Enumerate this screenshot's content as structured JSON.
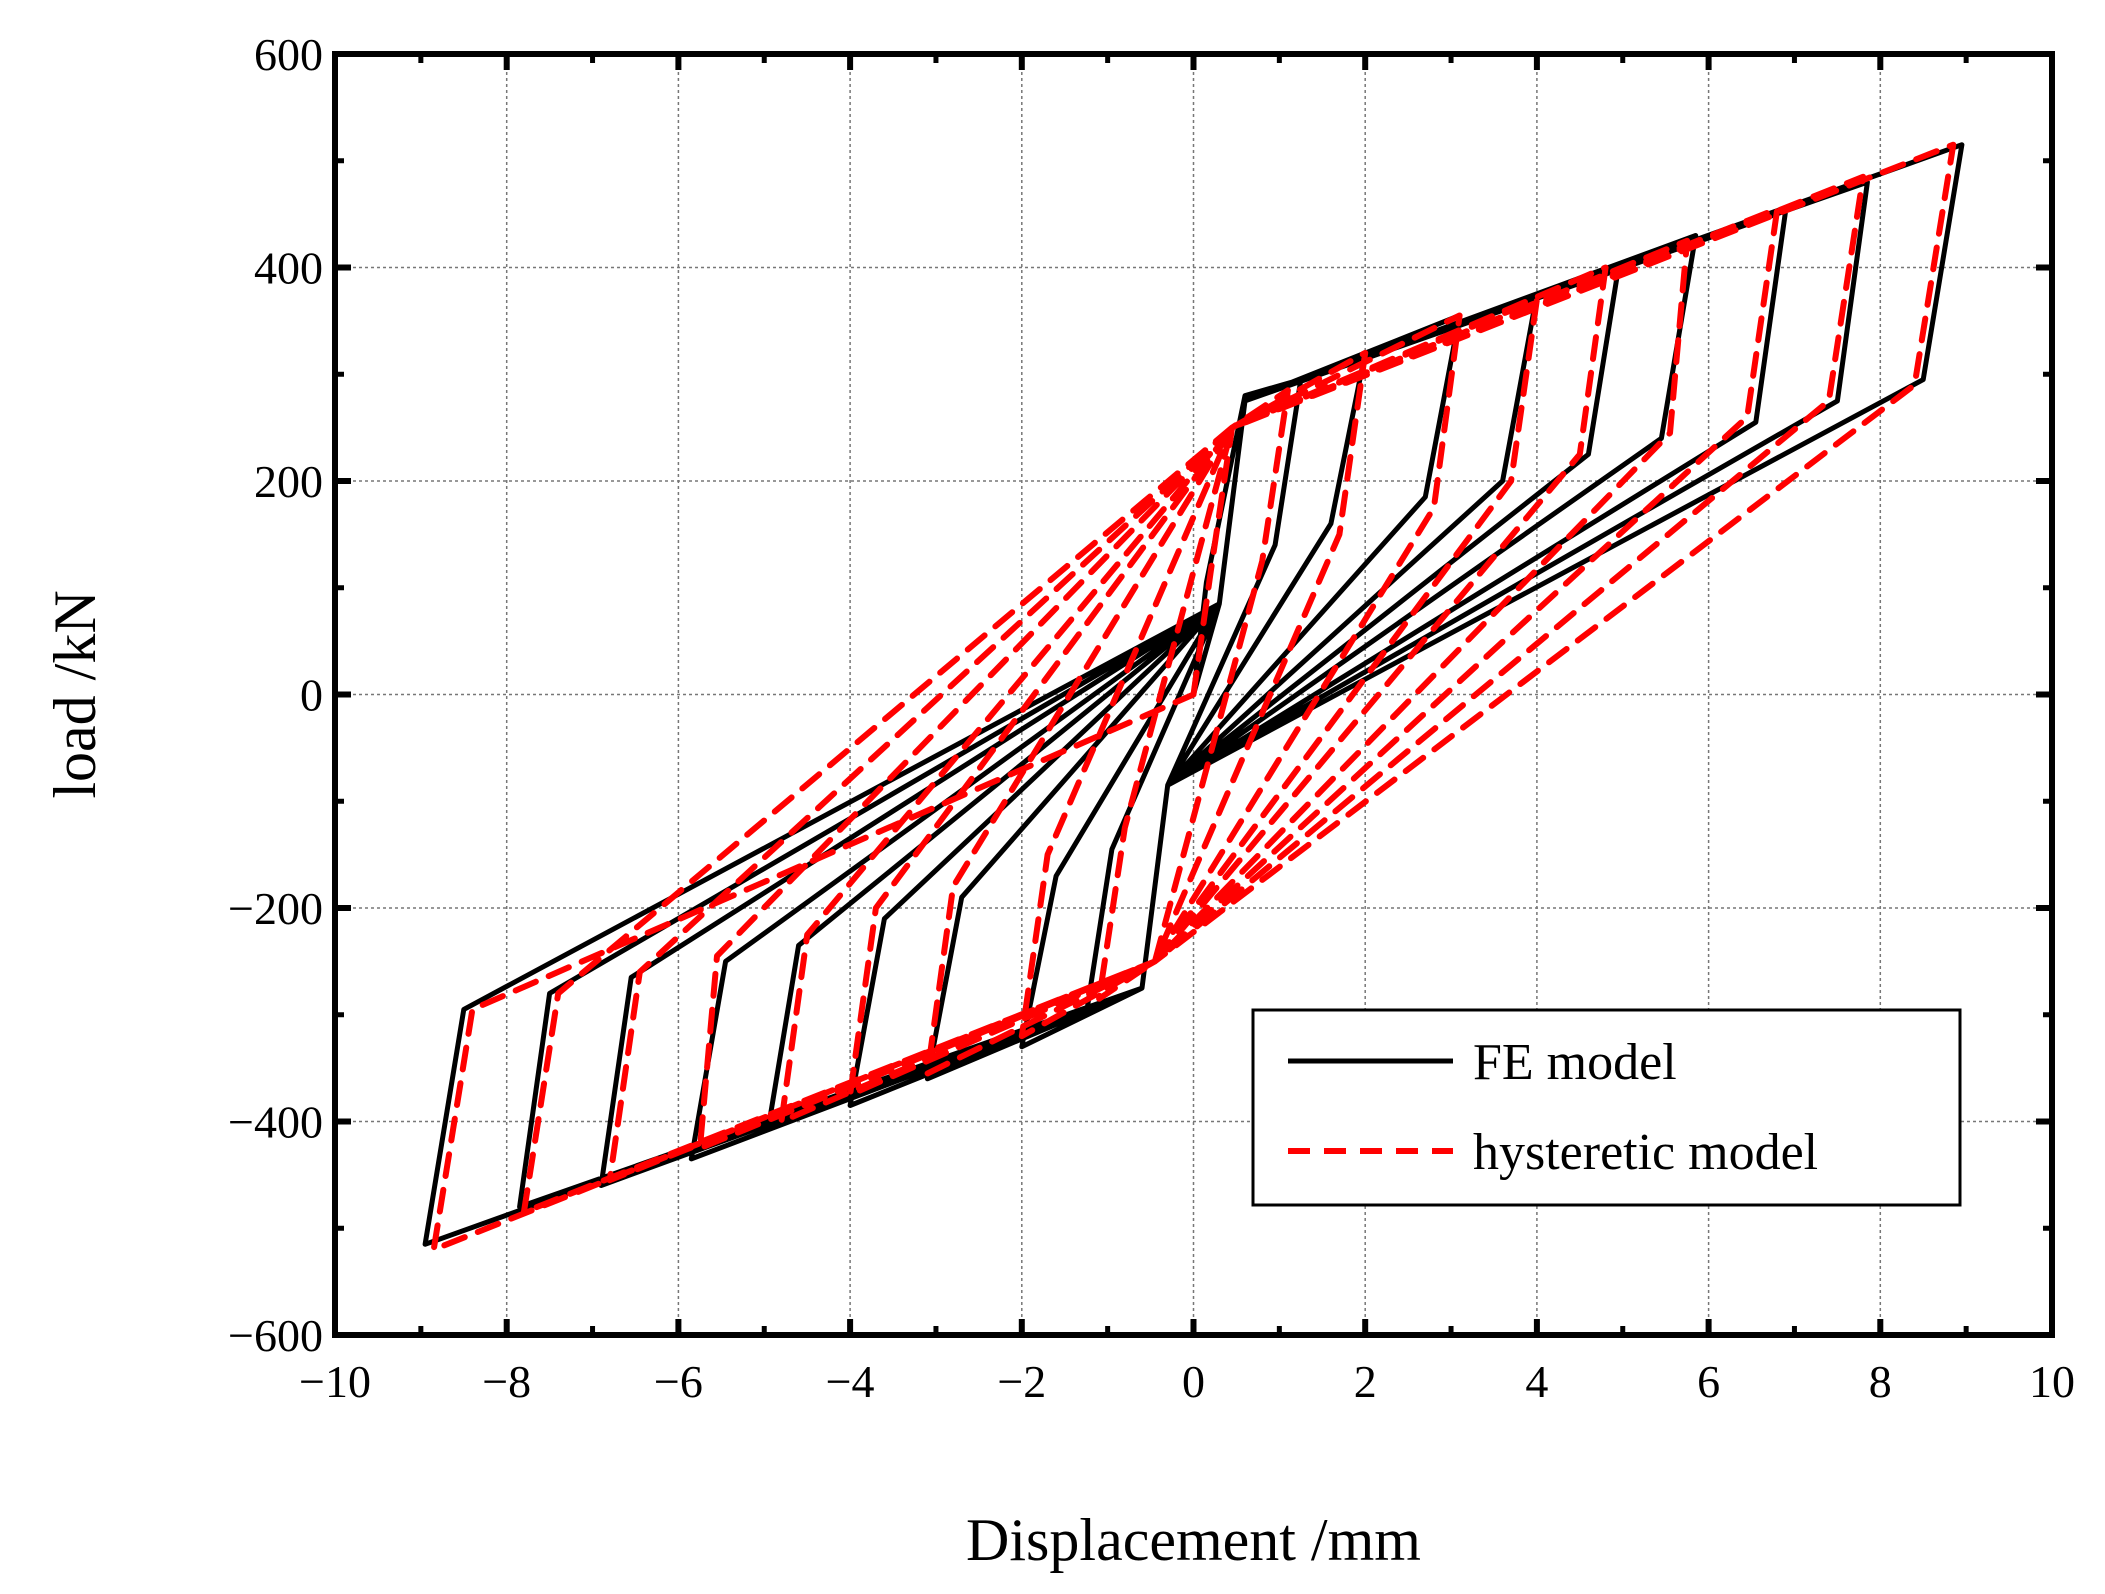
{
  "chart_data": {
    "type": "line",
    "title": "",
    "xlabel": "Displacement /mm",
    "ylabel": "load /kN",
    "xlim": [
      -10,
      10
    ],
    "ylim": [
      -600,
      600
    ],
    "xticks": [
      -10,
      -8,
      -6,
      -4,
      -2,
      0,
      2,
      4,
      6,
      8,
      10
    ],
    "yticks": [
      -600,
      -400,
      -200,
      0,
      200,
      400,
      600
    ],
    "xtick_labels": [
      "−10",
      "−8",
      "−6",
      "−4",
      "−2",
      "0",
      "2",
      "4",
      "6",
      "8",
      "10"
    ],
    "ytick_labels": [
      "−600",
      "−400",
      "−200",
      "0",
      "200",
      "400",
      "600"
    ],
    "grid": true,
    "legend_position": "bottom-right",
    "series": [
      {
        "name": "FE model",
        "color": "#000000",
        "style": "solid",
        "x": [
          0,
          0.15,
          0.6,
          1.25,
          0.95,
          -0.3,
          -0.6,
          -1.25,
          -0.95,
          0.3,
          0.6,
          2.0,
          1.6,
          -0.3,
          -0.6,
          -2.0,
          -1.6,
          0.3,
          0.6,
          3.1,
          2.7,
          -0.3,
          -0.6,
          -3.1,
          -2.7,
          0.3,
          0.6,
          4.0,
          3.6,
          -0.3,
          -0.6,
          -4.0,
          -3.6,
          0.3,
          0.6,
          4.95,
          4.6,
          -0.3,
          -0.6,
          -4.95,
          -4.6,
          0.3,
          0.6,
          5.85,
          5.45,
          -0.3,
          -0.6,
          -5.85,
          -5.45,
          0.3,
          0.6,
          6.9,
          6.55,
          -0.3,
          -0.6,
          -6.9,
          -6.55,
          0.3,
          0.6,
          7.85,
          7.5,
          -0.3,
          -0.6,
          -7.85,
          -7.5,
          0.3,
          0.6,
          8.95,
          8.5,
          -0.3,
          -0.6,
          -8.95,
          -8.5,
          0.3,
          0
        ],
        "y": [
          0,
          105,
          280,
          295,
          140,
          -85,
          -275,
          -300,
          -145,
          85,
          275,
          320,
          160,
          -85,
          -275,
          -330,
          -170,
          85,
          275,
          355,
          185,
          -85,
          -275,
          -360,
          -190,
          85,
          275,
          375,
          200,
          -85,
          -275,
          -385,
          -210,
          85,
          275,
          400,
          225,
          -85,
          -275,
          -405,
          -235,
          85,
          275,
          430,
          240,
          -85,
          -275,
          -435,
          -250,
          85,
          275,
          455,
          255,
          -85,
          -275,
          -460,
          -265,
          85,
          275,
          480,
          275,
          -85,
          -275,
          -480,
          -280,
          85,
          275,
          515,
          295,
          -85,
          -275,
          -515,
          -295,
          85,
          0
        ]
      },
      {
        "name": "hysteretic model",
        "color": "#ff0000",
        "style": "dashed",
        "x": [
          0,
          0.2,
          0.45,
          1.1,
          0.8,
          -0.45,
          -1.1,
          -0.8,
          0.45,
          2.0,
          1.7,
          -0.45,
          -2.0,
          -1.7,
          0.45,
          3.1,
          2.8,
          -0.45,
          -3.1,
          -2.8,
          0.45,
          4.0,
          3.7,
          -0.45,
          -4.0,
          -3.7,
          0.45,
          4.8,
          4.5,
          -0.45,
          -4.8,
          -4.5,
          0.45,
          5.75,
          5.55,
          -0.45,
          -5.75,
          -5.55,
          0.45,
          6.8,
          6.45,
          -0.45,
          -6.8,
          -6.45,
          0.45,
          7.8,
          7.4,
          -0.45,
          -7.8,
          -7.4,
          0.45,
          8.85,
          8.4,
          -0.45,
          -8.85,
          -8.4,
          0
        ],
        "y": [
          0,
          115,
          250,
          285,
          125,
          -250,
          -285,
          -125,
          250,
          320,
          150,
          -250,
          -320,
          -150,
          250,
          355,
          175,
          -250,
          -355,
          -180,
          250,
          370,
          200,
          -250,
          -375,
          -200,
          250,
          400,
          225,
          -250,
          -400,
          -225,
          250,
          425,
          245,
          -250,
          -425,
          -245,
          250,
          455,
          260,
          -250,
          -455,
          -260,
          250,
          485,
          275,
          -250,
          -485,
          -280,
          250,
          515,
          290,
          -250,
          -520,
          -295,
          0
        ]
      }
    ]
  }
}
